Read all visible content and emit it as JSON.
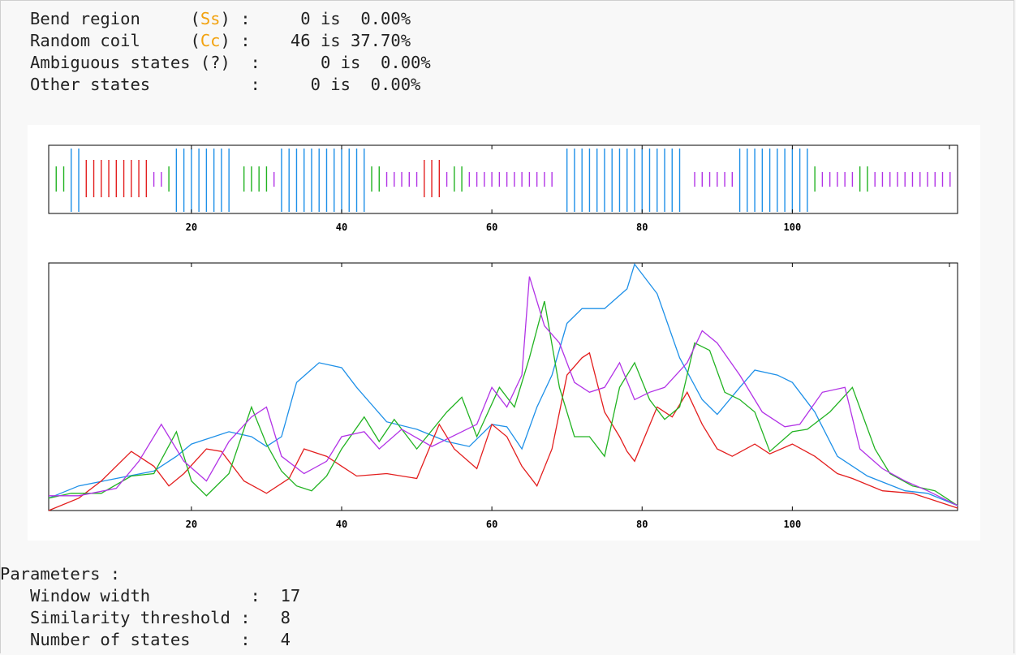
{
  "stats": [
    {
      "label": "   Bend region     (",
      "code": "Ss",
      "label_end": ") :",
      "count": "     0",
      "pct": "0.00%"
    },
    {
      "label": "   Random coil     (",
      "code": "Cc",
      "label_end": ") :",
      "count": "    46",
      "pct": "37.70%"
    },
    {
      "label": "   Ambiguous states (?)  :",
      "code": "",
      "label_end": "",
      "count": "      0",
      "pct": "0.00%"
    },
    {
      "label": "   Other states          :",
      "code": "",
      "label_end": "",
      "count": "     0",
      "pct": "0.00%"
    }
  ],
  "parameters": {
    "heading": "Parameters :",
    "items": [
      {
        "label": "   Window width          :",
        "value": "  17"
      },
      {
        "label": "   Similarity threshold :",
        "value": "   8"
      },
      {
        "label": "   Number of states     :",
        "value": "   4"
      }
    ]
  },
  "colors": {
    "helix": "#1e90e8",
    "sheet": "#e31e1e",
    "turn": "#22b322",
    "coil": "#b233e6",
    "highlight": "#f2a20f"
  },
  "chart_data": [
    {
      "type": "bar",
      "xlim": [
        1,
        122
      ],
      "x_ticks": [
        20,
        40,
        60,
        80,
        100
      ],
      "segments": [
        {
          "state": "turn",
          "start": 2,
          "end": 3
        },
        {
          "state": "helix",
          "start": 4,
          "end": 5
        },
        {
          "state": "sheet",
          "start": 6,
          "end": 14
        },
        {
          "state": "coil",
          "start": 15,
          "end": 16
        },
        {
          "state": "turn",
          "start": 17,
          "end": 17
        },
        {
          "state": "helix",
          "start": 18,
          "end": 25
        },
        {
          "state": "turn",
          "start": 27,
          "end": 30
        },
        {
          "state": "coil",
          "start": 31,
          "end": 31
        },
        {
          "state": "helix",
          "start": 32,
          "end": 43
        },
        {
          "state": "turn",
          "start": 44,
          "end": 45
        },
        {
          "state": "coil",
          "start": 46,
          "end": 50
        },
        {
          "state": "sheet",
          "start": 51,
          "end": 53
        },
        {
          "state": "coil",
          "start": 54,
          "end": 54
        },
        {
          "state": "turn",
          "start": 55,
          "end": 56
        },
        {
          "state": "coil",
          "start": 57,
          "end": 68
        },
        {
          "state": "helix",
          "start": 70,
          "end": 85
        },
        {
          "state": "coil",
          "start": 87,
          "end": 92
        },
        {
          "state": "helix",
          "start": 93,
          "end": 102
        },
        {
          "state": "turn",
          "start": 103,
          "end": 103
        },
        {
          "state": "coil",
          "start": 104,
          "end": 108
        },
        {
          "state": "turn",
          "start": 109,
          "end": 110
        },
        {
          "state": "coil",
          "start": 111,
          "end": 121
        }
      ]
    },
    {
      "type": "line",
      "xlim": [
        1,
        122
      ],
      "ylim": [
        0,
        1
      ],
      "x_ticks": [
        20,
        40,
        60,
        80,
        100
      ],
      "series": [
        {
          "state": "helix",
          "points": [
            [
              1,
              0.05
            ],
            [
              5,
              0.1
            ],
            [
              10,
              0.13
            ],
            [
              15,
              0.16
            ],
            [
              18,
              0.22
            ],
            [
              20,
              0.27
            ],
            [
              25,
              0.32
            ],
            [
              28,
              0.3
            ],
            [
              30,
              0.26
            ],
            [
              32,
              0.3
            ],
            [
              34,
              0.52
            ],
            [
              37,
              0.6
            ],
            [
              40,
              0.58
            ],
            [
              42,
              0.5
            ],
            [
              44,
              0.43
            ],
            [
              46,
              0.36
            ],
            [
              50,
              0.33
            ],
            [
              54,
              0.28
            ],
            [
              57,
              0.26
            ],
            [
              60,
              0.35
            ],
            [
              62,
              0.34
            ],
            [
              64,
              0.25
            ],
            [
              66,
              0.42
            ],
            [
              68,
              0.55
            ],
            [
              70,
              0.76
            ],
            [
              72,
              0.82
            ],
            [
              75,
              0.82
            ],
            [
              78,
              0.9
            ],
            [
              79,
              1.0
            ],
            [
              82,
              0.88
            ],
            [
              85,
              0.62
            ],
            [
              88,
              0.45
            ],
            [
              90,
              0.39
            ],
            [
              93,
              0.5
            ],
            [
              95,
              0.57
            ],
            [
              98,
              0.55
            ],
            [
              100,
              0.52
            ],
            [
              103,
              0.4
            ],
            [
              106,
              0.22
            ],
            [
              110,
              0.14
            ],
            [
              115,
              0.08
            ],
            [
              118,
              0.07
            ],
            [
              122,
              0.02
            ]
          ]
        },
        {
          "state": "sheet",
          "points": [
            [
              1,
              0.0
            ],
            [
              5,
              0.05
            ],
            [
              8,
              0.12
            ],
            [
              12,
              0.24
            ],
            [
              15,
              0.18
            ],
            [
              17,
              0.1
            ],
            [
              19,
              0.15
            ],
            [
              22,
              0.25
            ],
            [
              24,
              0.24
            ],
            [
              27,
              0.12
            ],
            [
              30,
              0.07
            ],
            [
              33,
              0.13
            ],
            [
              35,
              0.25
            ],
            [
              38,
              0.22
            ],
            [
              40,
              0.18
            ],
            [
              42,
              0.14
            ],
            [
              46,
              0.15
            ],
            [
              50,
              0.13
            ],
            [
              53,
              0.35
            ],
            [
              55,
              0.25
            ],
            [
              58,
              0.17
            ],
            [
              60,
              0.35
            ],
            [
              62,
              0.3
            ],
            [
              64,
              0.18
            ],
            [
              66,
              0.1
            ],
            [
              68,
              0.25
            ],
            [
              70,
              0.55
            ],
            [
              72,
              0.62
            ],
            [
              73,
              0.64
            ],
            [
              75,
              0.4
            ],
            [
              77,
              0.3
            ],
            [
              78,
              0.24
            ],
            [
              79,
              0.2
            ],
            [
              82,
              0.42
            ],
            [
              84,
              0.38
            ],
            [
              86,
              0.48
            ],
            [
              88,
              0.35
            ],
            [
              90,
              0.25
            ],
            [
              92,
              0.22
            ],
            [
              95,
              0.27
            ],
            [
              97,
              0.23
            ],
            [
              100,
              0.27
            ],
            [
              103,
              0.22
            ],
            [
              106,
              0.15
            ],
            [
              108,
              0.13
            ],
            [
              112,
              0.08
            ],
            [
              116,
              0.07
            ],
            [
              122,
              0.01
            ]
          ]
        },
        {
          "state": "turn",
          "points": [
            [
              1,
              0.05
            ],
            [
              4,
              0.07
            ],
            [
              8,
              0.07
            ],
            [
              12,
              0.14
            ],
            [
              15,
              0.15
            ],
            [
              18,
              0.32
            ],
            [
              20,
              0.12
            ],
            [
              22,
              0.06
            ],
            [
              25,
              0.15
            ],
            [
              28,
              0.42
            ],
            [
              30,
              0.27
            ],
            [
              32,
              0.16
            ],
            [
              34,
              0.1
            ],
            [
              36,
              0.08
            ],
            [
              38,
              0.14
            ],
            [
              40,
              0.25
            ],
            [
              43,
              0.38
            ],
            [
              45,
              0.28
            ],
            [
              47,
              0.37
            ],
            [
              50,
              0.25
            ],
            [
              54,
              0.4
            ],
            [
              56,
              0.46
            ],
            [
              58,
              0.3
            ],
            [
              61,
              0.5
            ],
            [
              63,
              0.42
            ],
            [
              65,
              0.62
            ],
            [
              67,
              0.85
            ],
            [
              69,
              0.5
            ],
            [
              71,
              0.3
            ],
            [
              73,
              0.3
            ],
            [
              75,
              0.22
            ],
            [
              77,
              0.5
            ],
            [
              79,
              0.6
            ],
            [
              81,
              0.45
            ],
            [
              83,
              0.37
            ],
            [
              85,
              0.42
            ],
            [
              87,
              0.68
            ],
            [
              89,
              0.65
            ],
            [
              91,
              0.48
            ],
            [
              93,
              0.45
            ],
            [
              95,
              0.4
            ],
            [
              97,
              0.24
            ],
            [
              100,
              0.32
            ],
            [
              102,
              0.33
            ],
            [
              105,
              0.4
            ],
            [
              108,
              0.5
            ],
            [
              111,
              0.25
            ],
            [
              113,
              0.15
            ],
            [
              116,
              0.1
            ],
            [
              119,
              0.08
            ],
            [
              122,
              0.02
            ]
          ]
        },
        {
          "state": "coil",
          "points": [
            [
              1,
              0.06
            ],
            [
              5,
              0.06
            ],
            [
              10,
              0.09
            ],
            [
              13,
              0.2
            ],
            [
              16,
              0.35
            ],
            [
              19,
              0.2
            ],
            [
              22,
              0.12
            ],
            [
              25,
              0.28
            ],
            [
              28,
              0.38
            ],
            [
              30,
              0.42
            ],
            [
              32,
              0.22
            ],
            [
              35,
              0.15
            ],
            [
              38,
              0.2
            ],
            [
              40,
              0.3
            ],
            [
              43,
              0.32
            ],
            [
              45,
              0.25
            ],
            [
              48,
              0.33
            ],
            [
              52,
              0.26
            ],
            [
              56,
              0.32
            ],
            [
              58,
              0.35
            ],
            [
              60,
              0.5
            ],
            [
              62,
              0.42
            ],
            [
              64,
              0.55
            ],
            [
              65,
              0.95
            ],
            [
              67,
              0.75
            ],
            [
              69,
              0.68
            ],
            [
              71,
              0.52
            ],
            [
              73,
              0.48
            ],
            [
              75,
              0.5
            ],
            [
              77,
              0.6
            ],
            [
              79,
              0.45
            ],
            [
              81,
              0.48
            ],
            [
              83,
              0.5
            ],
            [
              86,
              0.6
            ],
            [
              88,
              0.73
            ],
            [
              90,
              0.68
            ],
            [
              93,
              0.55
            ],
            [
              96,
              0.4
            ],
            [
              99,
              0.34
            ],
            [
              101,
              0.35
            ],
            [
              104,
              0.48
            ],
            [
              107,
              0.5
            ],
            [
              109,
              0.25
            ],
            [
              112,
              0.17
            ],
            [
              115,
              0.12
            ],
            [
              118,
              0.08
            ],
            [
              122,
              0.02
            ]
          ]
        }
      ]
    }
  ]
}
